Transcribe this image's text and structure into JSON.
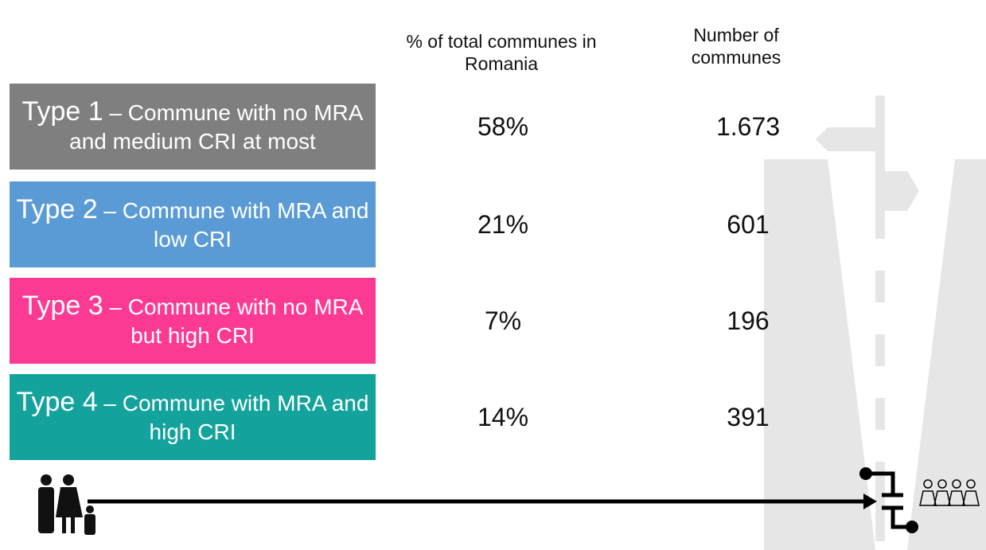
{
  "header": {
    "percent_column": "% of total communes in Romania",
    "count_column": "Number of communes"
  },
  "table": {
    "rows": [
      {
        "type": "Type 1",
        "description": "– Commune with no MRA and medium CRI at most",
        "color": "#7f7f7f",
        "percent": "58%",
        "count": "1.673"
      },
      {
        "type": "Type 2",
        "description": "– Commune with MRA and low CRI",
        "color": "#5b9bd5",
        "percent": "21%",
        "count": "601"
      },
      {
        "type": "Type 3",
        "description": "– Commune with no MRA but high CRI",
        "color": "#fc3a94",
        "percent": "7%",
        "count": "196"
      },
      {
        "type": "Type 4",
        "description": "– Commune with MRA and high CRI",
        "color": "#14a39c",
        "percent": "14%",
        "count": "391"
      }
    ]
  }
}
